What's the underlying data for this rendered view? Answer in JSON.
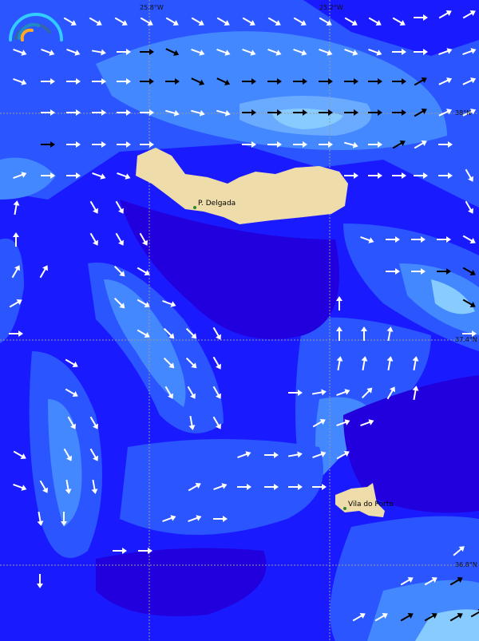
{
  "map": {
    "longitude_labels": [
      "25.8°W",
      "25.2°W"
    ],
    "latitude_labels": [
      "38°N",
      "37.4°N",
      "36.8°N"
    ],
    "places": [
      {
        "name": "P. Delgada"
      },
      {
        "name": "Vila do Porto"
      }
    ],
    "logo": "wave-gauge-logo",
    "colors": {
      "deep": "#2200dd",
      "low": "#1a1aff",
      "mid": "#2a55ff",
      "high": "#4488ff",
      "peak": "#88ccff",
      "land": "#eedcaa",
      "arrow_normal": "#ffffff",
      "arrow_strong": "#000000"
    }
  }
}
